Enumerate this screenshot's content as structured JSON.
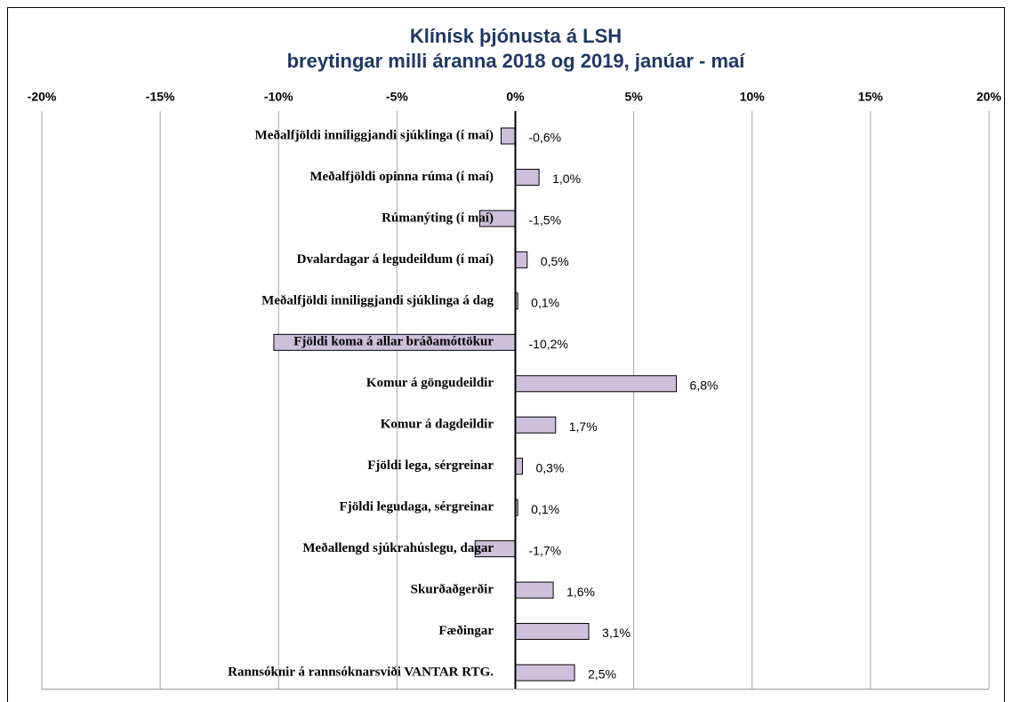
{
  "chart_data": {
    "type": "bar",
    "title": "Klínísk þjónusta á LSH",
    "subtitle": "breytingar milli áranna 2018 og 2019,  janúar - maí",
    "categories": [
      "Meðalfjöldi inniliggjandi sjúklinga (í maí)",
      "Meðalfjöldi opinna rúma (í maí)",
      "Rúmanýting (í maí)",
      "Dvalardagar á legudeildum (í maí)",
      "Meðalfjöldi inniliggjandi sjúklinga á dag",
      "Fjöldi koma á allar bráðamóttökur",
      "Komur á göngudeildir",
      "Komur á dagdeildir",
      "Fjöldi lega, sérgreinar",
      "Fjöldi legudaga, sérgreinar",
      "Meðallengd sjúkrahúslegu, dagar",
      "Skurðaðgerðir",
      "Fæðingar",
      "Rannsóknir á rannsóknarsviði VANTAR RTG."
    ],
    "values": [
      -0.6,
      1.0,
      -1.5,
      0.5,
      0.1,
      -10.2,
      6.8,
      1.7,
      0.3,
      0.1,
      -1.7,
      1.6,
      3.1,
      2.5
    ],
    "value_labels": [
      "-0,6%",
      "1,0%",
      "-1,5%",
      "0,5%",
      "0,1%",
      "-10,2%",
      "6,8%",
      "1,7%",
      "0,3%",
      "0,1%",
      "-1,7%",
      "1,6%",
      "3,1%",
      "2,5%"
    ],
    "color": "#ccc0da",
    "xlim": [
      -20,
      20
    ],
    "xticks": [
      {
        "value": -20,
        "label": "-20%"
      },
      {
        "value": -15,
        "label": "-15%"
      },
      {
        "value": -10,
        "label": "-10%"
      },
      {
        "value": -5,
        "label": "-5%"
      },
      {
        "value": 0,
        "label": "0%"
      },
      {
        "value": 5,
        "label": "5%"
      },
      {
        "value": 10,
        "label": "10%"
      },
      {
        "value": 15,
        "label": "15%"
      },
      {
        "value": 20,
        "label": "20%"
      }
    ],
    "grid": true
  }
}
